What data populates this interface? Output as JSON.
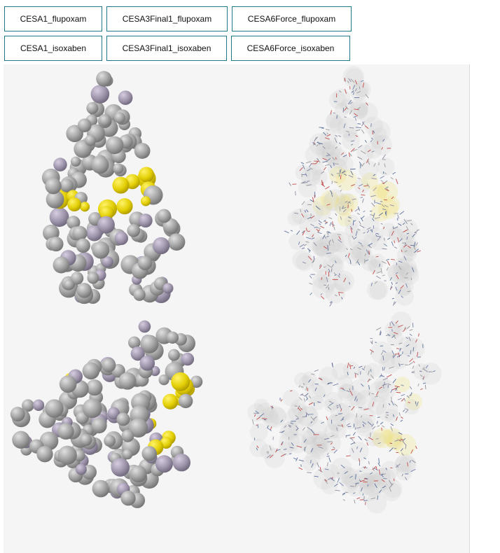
{
  "buttons": {
    "row1": [
      "CESA1_flupoxam",
      "CESA3Final1_flupoxam",
      "CESA6Force_flupoxam"
    ],
    "row2": [
      "CESA1_isoxaben",
      "CESA3Final1_isoxaben",
      "CESA6Force_isoxaben"
    ]
  },
  "viewer": {
    "background": "#f5f5f5",
    "surface_color": "#9a9a9a",
    "highlight_color": "#e6d200",
    "panels": [
      {
        "style": "opaque-surface"
      },
      {
        "style": "transparent-surface-with-sticks"
      },
      {
        "style": "opaque-surface"
      },
      {
        "style": "transparent-surface-with-sticks"
      }
    ]
  }
}
